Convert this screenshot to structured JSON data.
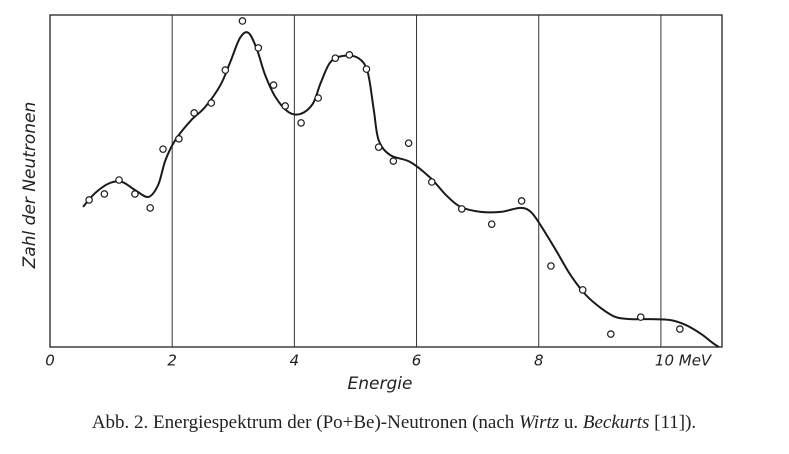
{
  "chart_data": {
    "type": "line",
    "x_label": "Energie",
    "y_label": "Zahl der Neutronen",
    "caption": [
      "Abb. 2. Energiespektrum der (Po+Be)-Neutronen (nach ",
      "Wirtz",
      " u. ",
      "Beckurts",
      " [11])."
    ],
    "xlim": [
      0,
      11
    ],
    "ylim": [
      0,
      100
    ],
    "xticks": [
      0,
      2,
      4,
      6,
      8,
      {
        "value": 10,
        "label": "10 MeV"
      }
    ],
    "grid": true,
    "color": "#1a1a1a",
    "series": [
      {
        "type": "line",
        "x": [
          0.54,
          0.74,
          0.98,
          1.18,
          1.39,
          1.61,
          1.77,
          1.89,
          2.05,
          2.3,
          2.54,
          2.79,
          2.95,
          3.11,
          3.25,
          3.39,
          3.52,
          3.69,
          3.9,
          4.1,
          4.3,
          4.43,
          4.59,
          4.8,
          5.05,
          5.2,
          5.3,
          5.38,
          5.57,
          5.9,
          6.23,
          6.48,
          6.72,
          7.05,
          7.38,
          7.7,
          7.87,
          8.03,
          8.28,
          8.52,
          8.77,
          9.02,
          9.26,
          9.51,
          9.84,
          10.16,
          10.41,
          10.66,
          10.85,
          10.95
        ],
        "values": [
          42.2,
          46.4,
          49.4,
          49.7,
          47.3,
          45.2,
          48.8,
          56.3,
          62.3,
          68.1,
          72.3,
          78.9,
          85.8,
          93.1,
          94.6,
          89.5,
          82.0,
          75.3,
          70.8,
          70.2,
          73.2,
          79.5,
          85.8,
          87.7,
          87.0,
          82.8,
          71.4,
          62.3,
          57.8,
          55.7,
          50.9,
          45.8,
          42.2,
          40.7,
          40.7,
          41.9,
          40.7,
          36.7,
          29.2,
          21.7,
          15.7,
          11.7,
          9.0,
          8.4,
          8.4,
          8.1,
          6.6,
          3.9,
          1.2,
          0
        ]
      },
      {
        "type": "scatter",
        "x": [
          0.64,
          0.89,
          1.13,
          1.39,
          1.64,
          1.85,
          2.11,
          2.36,
          2.64,
          2.87,
          3.15,
          3.41,
          3.66,
          3.85,
          4.11,
          4.39,
          4.67,
          4.9,
          5.18,
          5.38,
          5.62,
          5.87,
          6.25,
          6.74,
          7.23,
          7.72,
          8.2,
          8.72,
          9.18,
          9.67,
          10.31
        ],
        "values": [
          44.3,
          46.1,
          50.3,
          46.1,
          41.9,
          59.6,
          62.7,
          70.5,
          73.5,
          83.4,
          98.2,
          90.1,
          78.9,
          72.6,
          67.5,
          75.0,
          87.0,
          88.0,
          83.7,
          60.2,
          56.0,
          61.4,
          49.7,
          41.6,
          37.0,
          44.0,
          24.4,
          17.2,
          3.9,
          9.0,
          5.4
        ]
      }
    ]
  }
}
